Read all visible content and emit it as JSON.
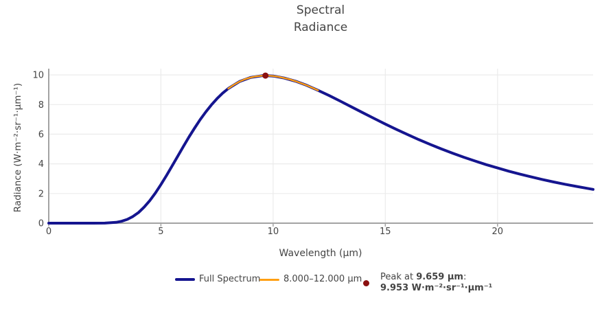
{
  "title": {
    "line1": "Spectral",
    "line2": "Radiance"
  },
  "axes": {
    "x_label": "Wavelength (μm)",
    "y_label": "Radiance (W·m⁻²·sr⁻¹·μm⁻¹)"
  },
  "legend": {
    "items": [
      {
        "type": "line",
        "label": "Full Spectrum",
        "color": "#15158f"
      },
      {
        "type": "line",
        "label": "8.000–12.000 μm",
        "color": "#ff9f13"
      },
      {
        "type": "marker",
        "color": "#8b1010",
        "line1_prefix": "Peak at ",
        "line1_bold": "9.659 μm",
        "line1_suffix": ":",
        "line2_bold": "9.953 W·m⁻²·sr⁻¹·μm⁻¹"
      }
    ]
  },
  "colors": {
    "full_spectrum": "#15158f",
    "band": "#ff9f13",
    "peak": "#8b1010",
    "grid": "#ebebeb",
    "axis_line": "#a3a3a3",
    "text": "#444444"
  },
  "chart_data": {
    "type": "line",
    "title": "Spectral Radiance",
    "xlabel": "Wavelength (μm)",
    "ylabel": "Radiance (W·m⁻²·sr⁻¹·μm⁻¹)",
    "xlim": [
      0,
      24.26
    ],
    "ylim": [
      0,
      10.42
    ],
    "x_ticks": [
      0,
      5,
      10,
      15,
      20
    ],
    "y_ticks": [
      0,
      2,
      4,
      6,
      8,
      10
    ],
    "grid": true,
    "legend_position": "bottom-center",
    "series": [
      {
        "name": "Full Spectrum",
        "color": "#15158f",
        "width": 4,
        "x": [
          0,
          0.5,
          1,
          1.5,
          2,
          2.5,
          3,
          3.25,
          3.5,
          3.75,
          4,
          4.25,
          4.5,
          4.75,
          5,
          5.25,
          5.5,
          5.75,
          6,
          6.25,
          6.5,
          6.75,
          7,
          7.25,
          7.5,
          7.75,
          8,
          8.5,
          9,
          9.5,
          9.659,
          10,
          10.5,
          11,
          11.5,
          12,
          12.5,
          13,
          13.5,
          14,
          14.5,
          15,
          15.5,
          16,
          16.5,
          17,
          17.5,
          18,
          18.5,
          19,
          19.5,
          20,
          20.5,
          21,
          21.5,
          22,
          22.5,
          23,
          23.5,
          24,
          24.26
        ],
        "y": [
          0,
          0,
          0,
          0,
          0.0001,
          0.006,
          0.056,
          0.128,
          0.254,
          0.448,
          0.719,
          1.08,
          1.515,
          2.029,
          2.602,
          3.22,
          3.866,
          4.521,
          5.167,
          5.813,
          6.412,
          6.984,
          7.503,
          7.979,
          8.403,
          8.768,
          9.079,
          9.549,
          9.829,
          9.945,
          9.953,
          9.924,
          9.787,
          9.572,
          9.294,
          8.956,
          8.603,
          8.223,
          7.835,
          7.447,
          7.062,
          6.684,
          6.317,
          5.968,
          5.632,
          5.312,
          5.005,
          4.718,
          4.448,
          4.19,
          3.945,
          3.722,
          3.504,
          3.308,
          3.121,
          2.945,
          2.779,
          2.627,
          2.481,
          2.346,
          2.278
        ]
      },
      {
        "name": "8.000–12.000 μm",
        "color": "#ff9f13",
        "width": 2.4,
        "x": [
          8,
          8.25,
          8.5,
          8.75,
          9,
          9.25,
          9.5,
          9.659,
          9.75,
          10,
          10.25,
          10.5,
          10.75,
          11,
          11.25,
          11.5,
          11.75,
          12
        ],
        "y": [
          9.079,
          9.334,
          9.549,
          9.712,
          9.829,
          9.902,
          9.945,
          9.953,
          9.949,
          9.924,
          9.87,
          9.787,
          9.694,
          9.572,
          9.439,
          9.294,
          9.129,
          8.956
        ]
      },
      {
        "name": "Peak at 9.659 μm: 9.953 W·m⁻²·sr⁻¹·μm⁻¹",
        "type": "marker",
        "color": "#8b1010",
        "x": [
          9.659
        ],
        "y": [
          9.953
        ]
      }
    ]
  }
}
